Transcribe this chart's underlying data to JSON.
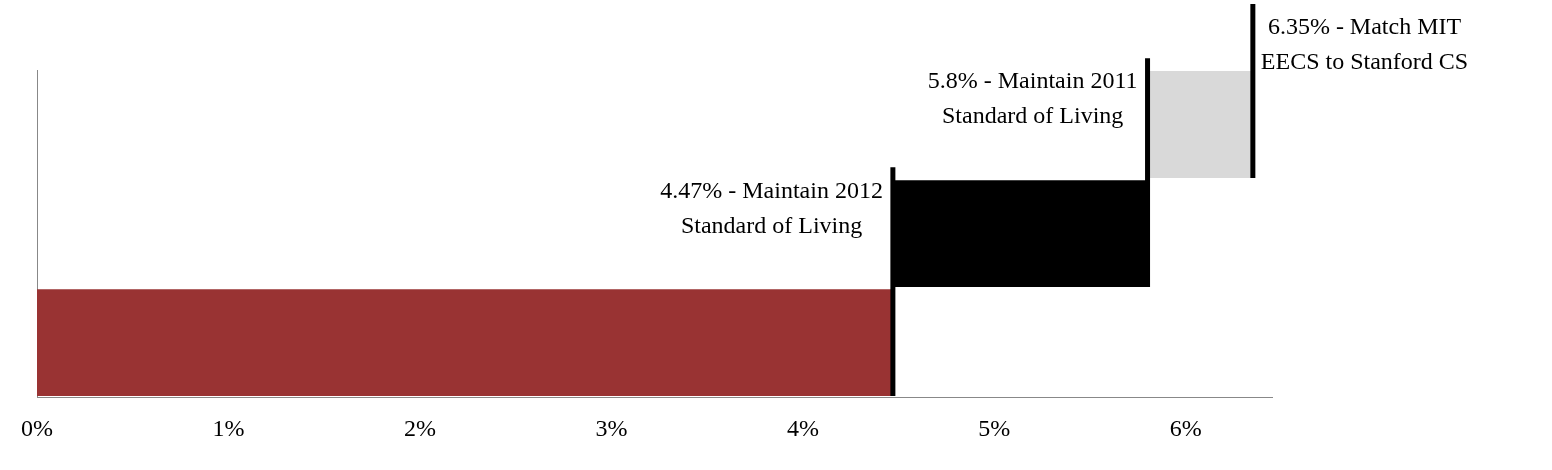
{
  "chart_data": {
    "type": "bar",
    "orientation": "horizontal",
    "categories": [
      null,
      null,
      null
    ],
    "values": [
      0.55,
      1.33,
      4.47
    ],
    "base": [
      5.8,
      4.47,
      0
    ],
    "colors": [
      "#d9d9d9",
      "#000000",
      "#993333"
    ],
    "xlim": [
      0,
      6.45
    ],
    "xticks": [
      {
        "value": 0,
        "label": "0%"
      },
      {
        "value": 1,
        "label": "1%"
      },
      {
        "value": 2,
        "label": "2%"
      },
      {
        "value": 3,
        "label": "3%"
      },
      {
        "value": 4,
        "label": "4%"
      },
      {
        "value": 5,
        "label": "5%"
      },
      {
        "value": 6,
        "label": "6%"
      }
    ],
    "tick_labels": "x",
    "grid": false,
    "legend": false,
    "ref_lines": [
      {
        "axis": "x",
        "value": 4.47,
        "label": "4.47% - Maintain 2012 Standard of Living",
        "color": "#000000"
      },
      {
        "axis": "x",
        "value": 5.8,
        "label": "5.8% - Maintain 2011 Standard of Living",
        "color": "#000000"
      },
      {
        "axis": "x",
        "value": 6.35,
        "label": "6.35% - Match MIT EECS to Stanford CS",
        "color": "#000000"
      }
    ]
  }
}
